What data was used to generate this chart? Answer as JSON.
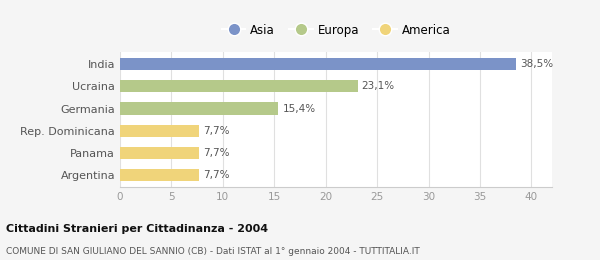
{
  "categories": [
    "India",
    "Ucraina",
    "Germania",
    "Rep. Dominicana",
    "Panama",
    "Argentina"
  ],
  "values": [
    38.5,
    23.1,
    15.4,
    7.7,
    7.7,
    7.7
  ],
  "labels": [
    "38,5%",
    "23,1%",
    "15,4%",
    "7,7%",
    "7,7%",
    "7,7%"
  ],
  "colors": [
    "#7b93c8",
    "#b5c98a",
    "#b5c98a",
    "#f0d47a",
    "#f0d47a",
    "#f0d47a"
  ],
  "legend_entries": [
    {
      "label": "Asia",
      "color": "#7b93c8"
    },
    {
      "label": "Europa",
      "color": "#b5c98a"
    },
    {
      "label": "America",
      "color": "#f0d47a"
    }
  ],
  "xlim": [
    0,
    42
  ],
  "xticks": [
    0,
    5,
    10,
    15,
    20,
    25,
    30,
    35,
    40
  ],
  "title": "Cittadini Stranieri per Cittadinanza - 2004",
  "subtitle": "COMUNE DI SAN GIULIANO DEL SANNIO (CB) - Dati ISTAT al 1° gennaio 2004 - TUTTITALIA.IT",
  "background_color": "#f5f5f5",
  "plot_bg_color": "#ffffff",
  "bar_height": 0.55
}
